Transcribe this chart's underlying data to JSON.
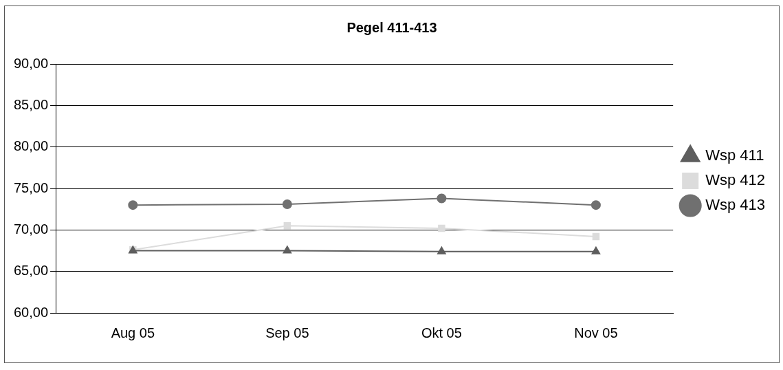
{
  "chart_data": {
    "type": "line",
    "title": "Pegel 411-413",
    "categories": [
      "Aug 05",
      "Sep 05",
      "Okt 05",
      "Nov 05"
    ],
    "series": [
      {
        "name": "Wsp 413",
        "color": "#707070",
        "marker": "circle",
        "values": [
          73.0,
          73.1,
          73.8,
          73.0
        ]
      },
      {
        "name": "Wsp 412",
        "color": "#dcdcdc",
        "marker": "square",
        "values": [
          67.6,
          70.5,
          70.2,
          69.2
        ]
      },
      {
        "name": "Wsp 411",
        "color": "#5e5e5e",
        "marker": "triangle",
        "values": [
          67.5,
          67.5,
          67.4,
          67.4
        ]
      }
    ],
    "ylim": [
      60,
      90
    ],
    "yticks": [
      {
        "value": 60,
        "label": "60,00"
      },
      {
        "value": 65,
        "label": "65,00"
      },
      {
        "value": 70,
        "label": "70,00"
      },
      {
        "value": 75,
        "label": "75,00"
      },
      {
        "value": 80,
        "label": "80,00"
      },
      {
        "value": 85,
        "label": "85,00"
      },
      {
        "value": 90,
        "label": "90,00"
      }
    ],
    "grid": "y",
    "legend": "right",
    "line_style": "solid"
  }
}
